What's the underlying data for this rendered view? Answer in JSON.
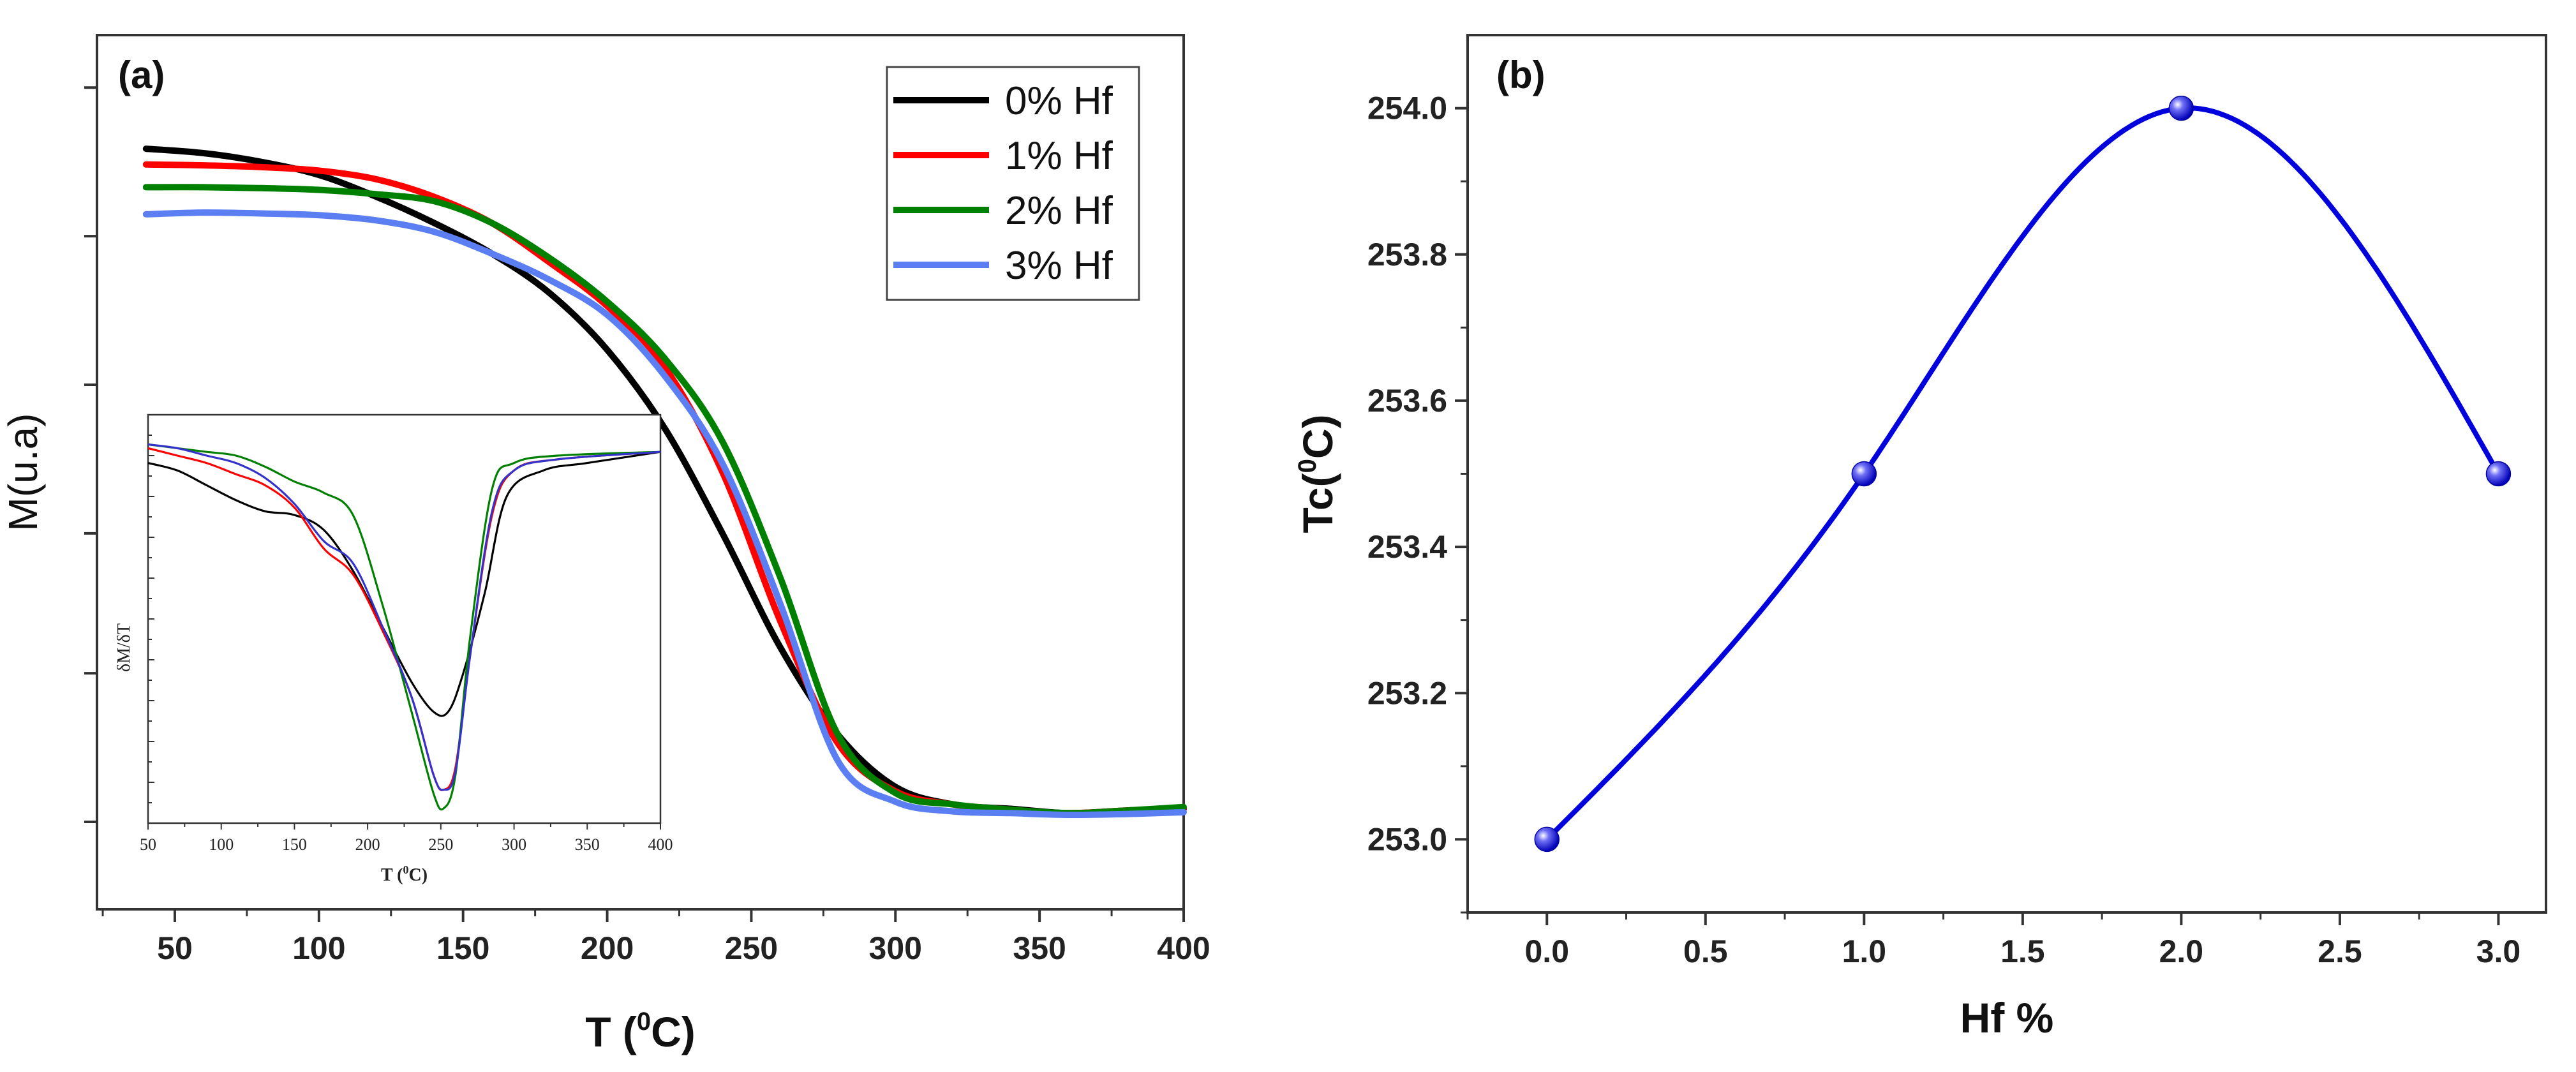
{
  "chart_data": [
    {
      "panel": "(a)",
      "type": "line",
      "xlabel": "T (⁰C)",
      "xlabel_parts": {
        "pre": "T (",
        "sup": "0",
        "post": "C)"
      },
      "ylabel": "M(u.a)",
      "xlim": [
        23,
        400
      ],
      "ylim": [
        0,
        1
      ],
      "xticks": [
        50,
        100,
        150,
        200,
        250,
        300,
        350,
        400
      ],
      "xtick_labels": [
        "50",
        "100",
        "150",
        "200",
        "250",
        "300",
        "350",
        "400"
      ],
      "yticks_unlabeled": [
        0.1,
        0.27,
        0.43,
        0.6,
        0.77,
        0.94
      ],
      "legend_position": "top-right",
      "series": [
        {
          "name": "0% Hf",
          "color": "#000000",
          "x": [
            40,
            60,
            80,
            100,
            120,
            140,
            160,
            180,
            200,
            220,
            240,
            260,
            280,
            300,
            320,
            340,
            360,
            380,
            400
          ],
          "y": [
            0.87,
            0.865,
            0.855,
            0.84,
            0.815,
            0.785,
            0.75,
            0.705,
            0.64,
            0.55,
            0.43,
            0.3,
            0.2,
            0.14,
            0.12,
            0.115,
            0.11,
            0.113,
            0.115
          ]
        },
        {
          "name": "1% Hf",
          "color": "#ff0000",
          "x": [
            40,
            60,
            80,
            100,
            120,
            140,
            160,
            180,
            200,
            220,
            240,
            260,
            280,
            300,
            320,
            340,
            360,
            380,
            400
          ],
          "y": [
            0.852,
            0.851,
            0.849,
            0.845,
            0.835,
            0.815,
            0.785,
            0.74,
            0.69,
            0.62,
            0.5,
            0.33,
            0.19,
            0.135,
            0.12,
            0.113,
            0.11,
            0.113,
            0.116
          ]
        },
        {
          "name": "2% Hf",
          "color": "#008000",
          "x": [
            40,
            60,
            80,
            100,
            120,
            140,
            160,
            180,
            200,
            220,
            240,
            260,
            280,
            300,
            320,
            340,
            360,
            380,
            400
          ],
          "y": [
            0.826,
            0.826,
            0.825,
            0.823,
            0.818,
            0.81,
            0.785,
            0.745,
            0.695,
            0.63,
            0.535,
            0.38,
            0.2,
            0.133,
            0.12,
            0.114,
            0.11,
            0.113,
            0.117
          ]
        },
        {
          "name": "3% Hf",
          "color": "#5b7ff2",
          "x": [
            40,
            60,
            80,
            100,
            120,
            140,
            160,
            180,
            200,
            220,
            240,
            260,
            280,
            300,
            320,
            340,
            360,
            380,
            400
          ],
          "y": [
            0.795,
            0.797,
            0.796,
            0.794,
            0.788,
            0.775,
            0.75,
            0.72,
            0.68,
            0.61,
            0.51,
            0.35,
            0.17,
            0.123,
            0.112,
            0.11,
            0.108,
            0.109,
            0.111
          ]
        }
      ],
      "inset": {
        "type": "line",
        "xlabel": "T (⁰C)",
        "xlabel_parts": {
          "pre": "T (",
          "sup": "0",
          "post": "C)"
        },
        "ylabel": "δM/δT",
        "xlim": [
          50,
          400
        ],
        "ylim": [
          -1,
          0.1
        ],
        "xticks": [
          50,
          100,
          150,
          200,
          250,
          300,
          350,
          400
        ],
        "xtick_labels": [
          "50",
          "100",
          "150",
          "200",
          "250",
          "300",
          "350",
          "400"
        ],
        "series": [
          {
            "name": "0% Hf",
            "color": "#000000",
            "x": [
              50,
              70,
              90,
              110,
              130,
              150,
              170,
              190,
              210,
              230,
              245,
              255,
              265,
              280,
              295,
              320,
              350,
              400
            ],
            "y": [
              -0.03,
              -0.05,
              -0.09,
              -0.13,
              -0.16,
              -0.17,
              -0.21,
              -0.32,
              -0.47,
              -0.62,
              -0.7,
              -0.7,
              -0.6,
              -0.38,
              -0.12,
              -0.05,
              -0.03,
              0.0
            ]
          },
          {
            "name": "1% Hf",
            "color": "#ff0000",
            "x": [
              50,
              70,
              90,
              110,
              130,
              150,
              170,
              190,
              210,
              230,
              245,
              252,
              260,
              270,
              285,
              300,
              330,
              400
            ],
            "y": [
              0.01,
              -0.01,
              -0.03,
              -0.06,
              -0.09,
              -0.15,
              -0.26,
              -0.33,
              -0.48,
              -0.66,
              -0.87,
              -0.91,
              -0.85,
              -0.55,
              -0.17,
              -0.05,
              -0.02,
              0.0
            ]
          },
          {
            "name": "2% Hf",
            "color": "#008000",
            "x": [
              50,
              70,
              90,
              110,
              130,
              150,
              170,
              190,
              210,
              230,
              245,
              252,
              260,
              270,
              285,
              300,
              330,
              400
            ],
            "y": [
              0.02,
              0.01,
              0.0,
              -0.01,
              -0.04,
              -0.08,
              -0.11,
              -0.17,
              -0.41,
              -0.7,
              -0.92,
              -0.96,
              -0.87,
              -0.5,
              -0.1,
              -0.03,
              -0.01,
              0.0
            ]
          },
          {
            "name": "3% Hf",
            "color": "#3333cc",
            "x": [
              50,
              70,
              90,
              110,
              130,
              150,
              170,
              190,
              210,
              230,
              245,
              252,
              260,
              270,
              285,
              300,
              330,
              400
            ],
            "y": [
              0.02,
              0.01,
              -0.01,
              -0.03,
              -0.07,
              -0.14,
              -0.24,
              -0.3,
              -0.47,
              -0.66,
              -0.87,
              -0.91,
              -0.86,
              -0.55,
              -0.16,
              -0.05,
              -0.02,
              0.0
            ]
          }
        ]
      }
    },
    {
      "panel": "(b)",
      "type": "line",
      "xlabel": "Hf %",
      "ylabel": "Tc(⁰C)",
      "ylabel_parts": {
        "pre": "Tc(",
        "sup": "0",
        "post": "C)"
      },
      "xlim": [
        -0.25,
        3.15
      ],
      "ylim": [
        252.9,
        254.1
      ],
      "xticks": [
        0.0,
        0.5,
        1.0,
        1.5,
        2.0,
        2.5,
        3.0
      ],
      "xtick_labels": [
        "0.0",
        "0.5",
        "1.0",
        "1.5",
        "2.0",
        "2.5",
        "3.0"
      ],
      "yticks": [
        253.0,
        253.2,
        253.4,
        253.6,
        253.8,
        254.0
      ],
      "ytick_labels": [
        "253.0",
        "253.2",
        "253.4",
        "253.6",
        "253.8",
        "254.0"
      ],
      "series": [
        {
          "name": "Tc",
          "color": "#0000dd",
          "x": [
            0,
            1,
            2,
            3
          ],
          "y": [
            253.0,
            253.5,
            254.0,
            253.5
          ]
        }
      ]
    }
  ]
}
